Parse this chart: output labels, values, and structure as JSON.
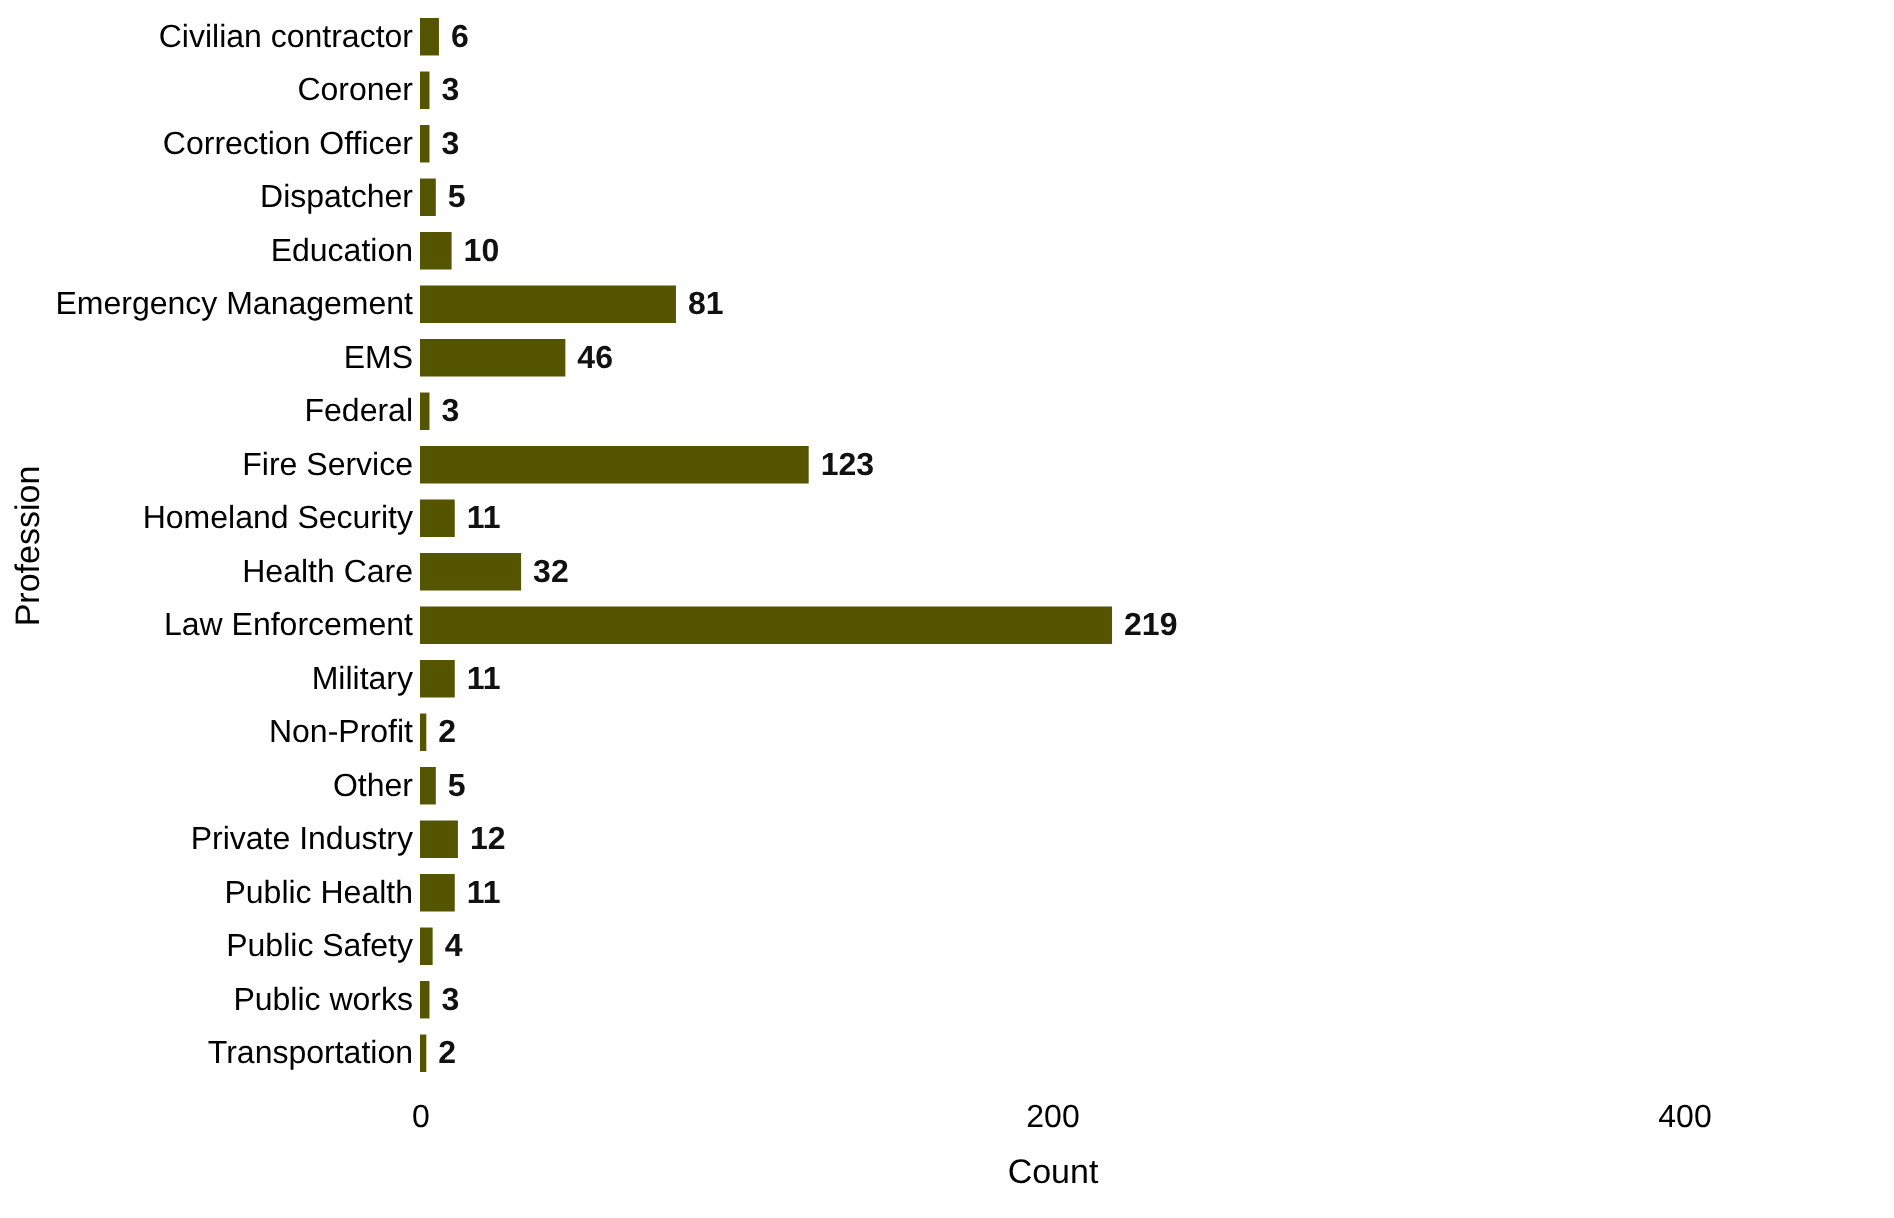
{
  "chart_data": {
    "type": "bar",
    "orientation": "horizontal",
    "xlabel": "Count",
    "ylabel": "Profession",
    "categories": [
      "Civilian contractor",
      "Coroner",
      "Correction Officer",
      "Dispatcher",
      "Education",
      "Emergency Management",
      "EMS",
      "Federal",
      "Fire Service",
      "Homeland Security",
      "Health Care",
      "Law Enforcement",
      "Military",
      "Non-Profit",
      "Other",
      "Private Industry",
      "Public Health",
      "Public Safety",
      "Public works",
      "Transportation"
    ],
    "values": [
      6,
      3,
      3,
      5,
      10,
      81,
      46,
      3,
      123,
      11,
      32,
      219,
      11,
      2,
      5,
      12,
      11,
      4,
      3,
      2
    ],
    "color": "#555500",
    "xlim": [
      0,
      400
    ],
    "xticks": [
      0,
      200,
      400
    ],
    "grid": false,
    "data_labels": true
  }
}
